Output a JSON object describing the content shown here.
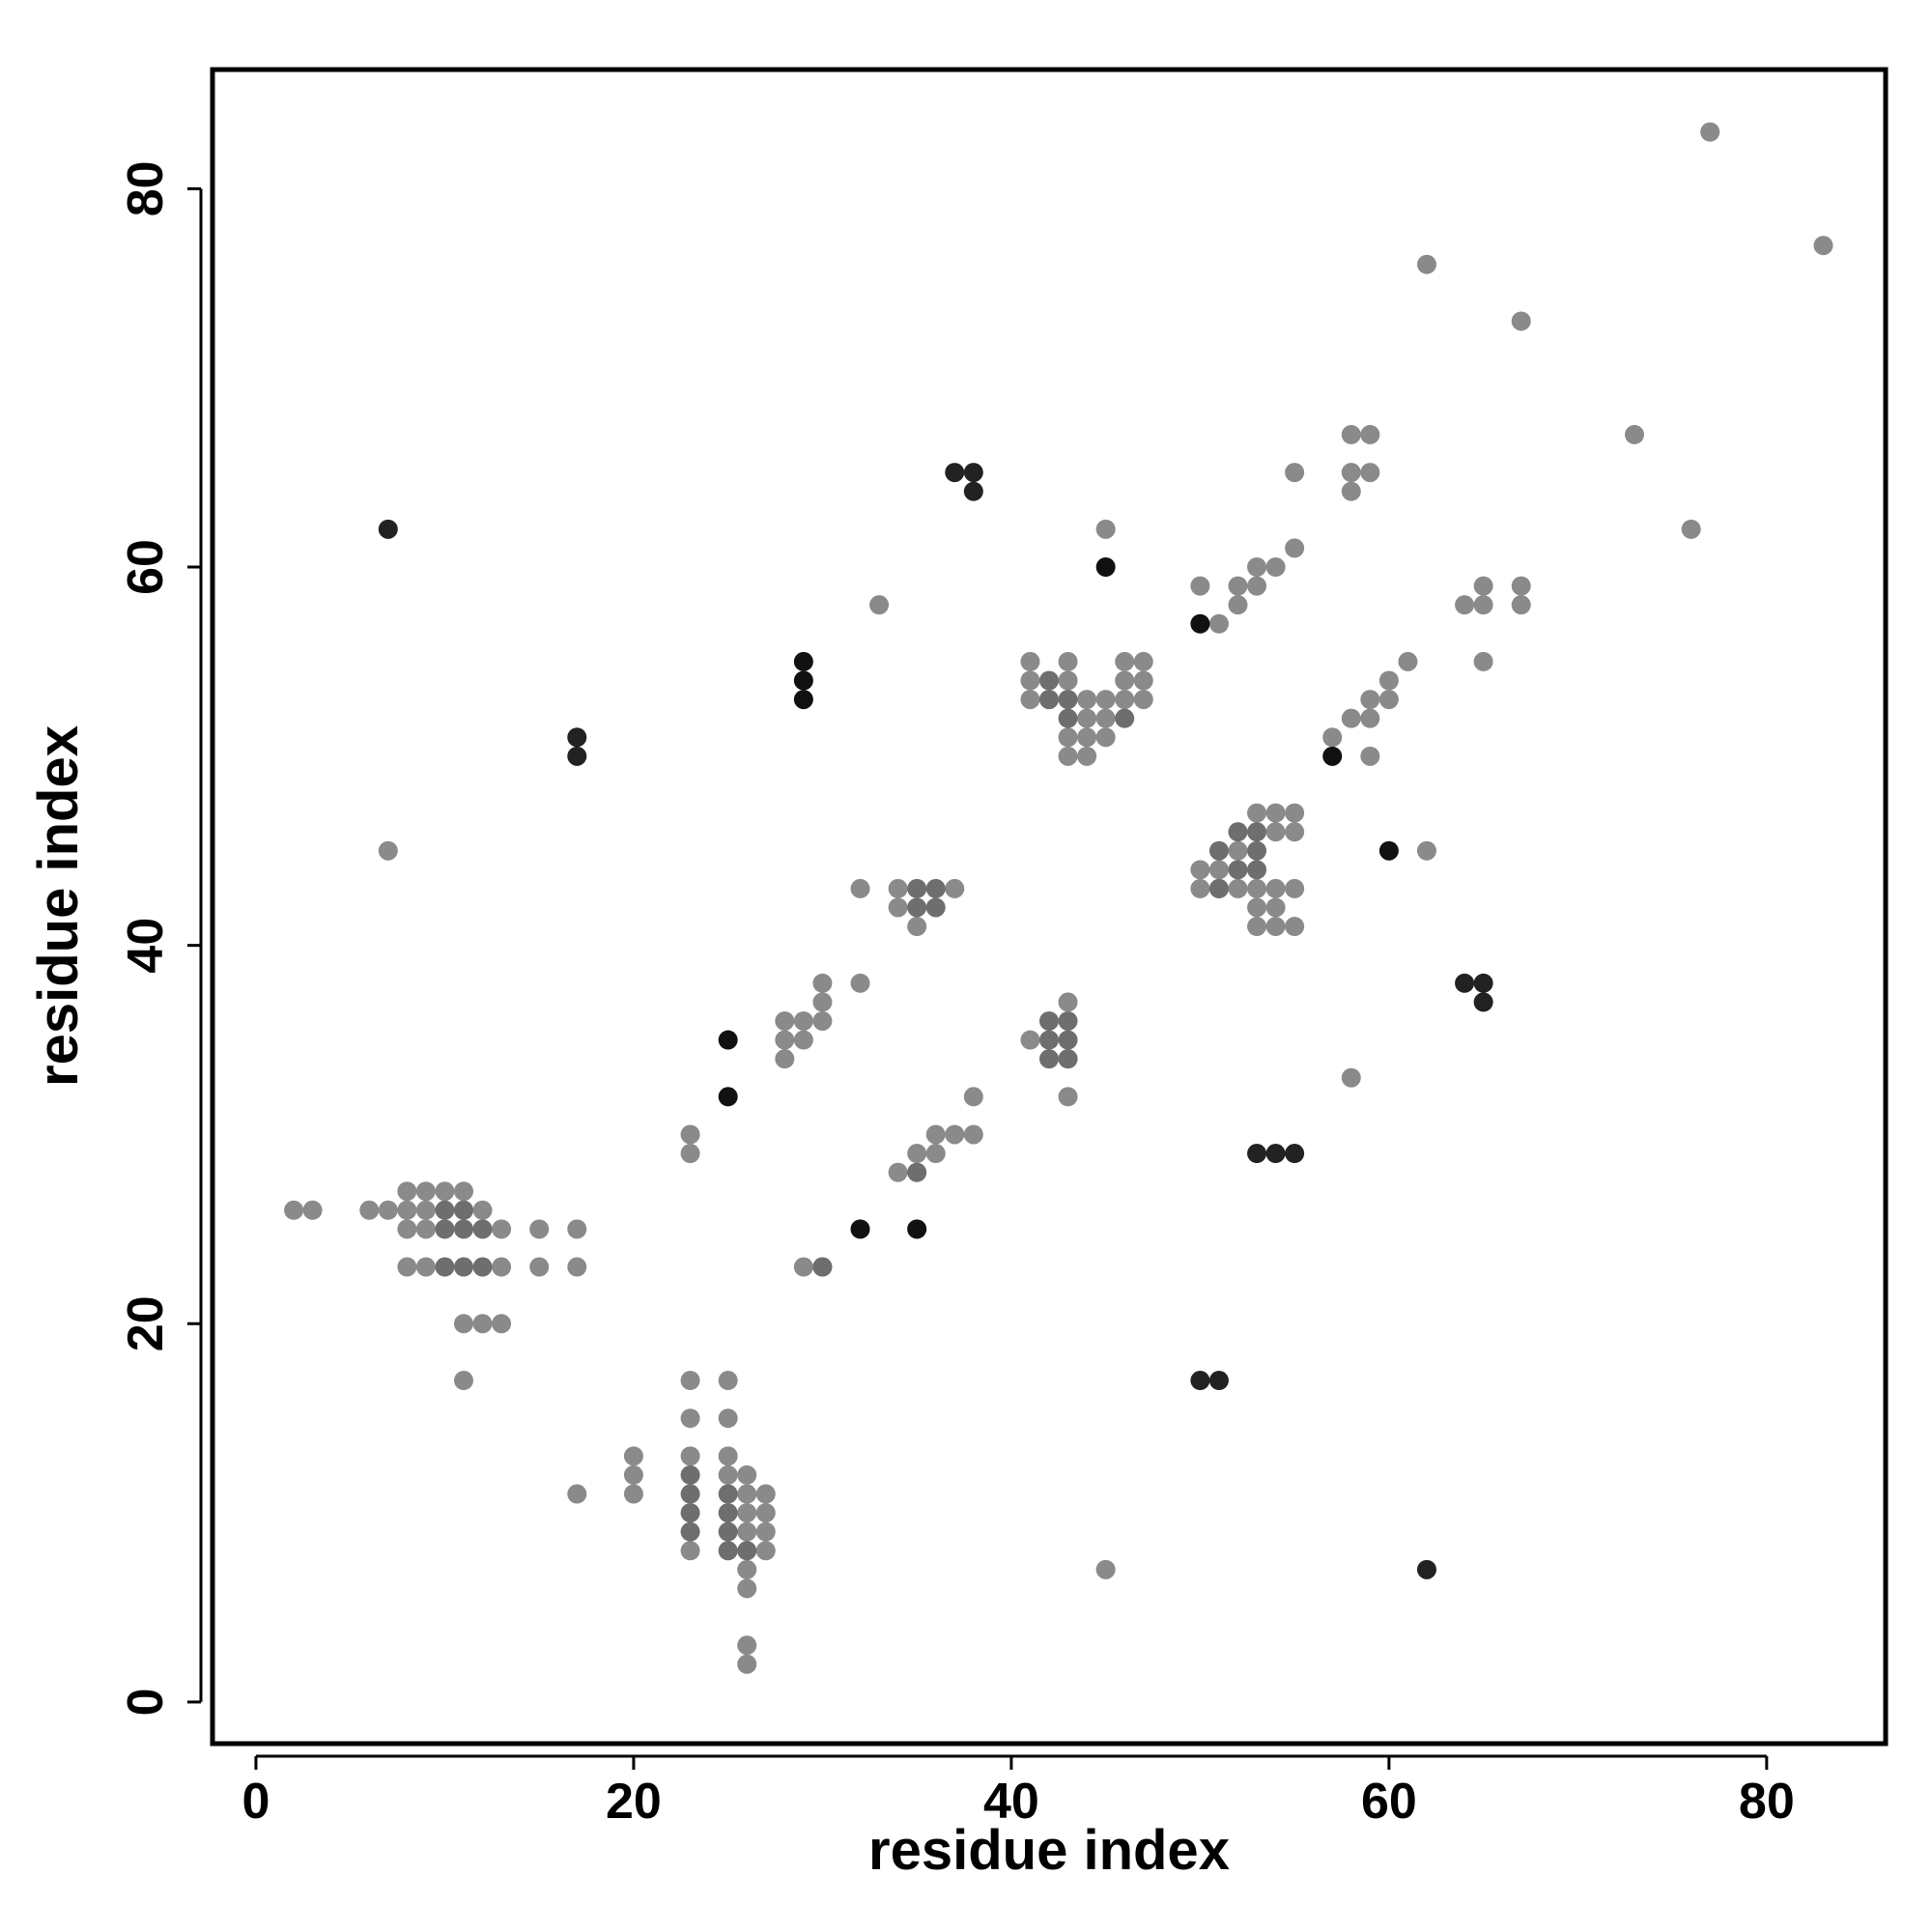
{
  "chart_data": {
    "type": "scatter",
    "title": "",
    "xlabel": "residue index",
    "ylabel": "residue index",
    "xlim": [
      -2.3,
      86.3
    ],
    "ylim": [
      -2.2,
      86.3
    ],
    "xticks": [
      0,
      20,
      40,
      60,
      80
    ],
    "yticks": [
      0,
      20,
      40,
      60,
      80
    ],
    "grid": false,
    "colors": {
      "light": "#8a8a8a",
      "medium": "#6e6e6e",
      "dark": "#222222",
      "black": "#111111"
    },
    "series": [
      {
        "shade": "light",
        "points": [
          [
            2,
            26
          ],
          [
            3,
            26
          ],
          [
            6,
            26
          ],
          [
            7,
            26
          ],
          [
            8,
            27
          ],
          [
            9,
            27
          ],
          [
            10,
            27
          ],
          [
            11,
            27
          ],
          [
            8,
            26
          ],
          [
            9,
            26
          ],
          [
            11,
            26
          ],
          [
            12,
            26
          ],
          [
            8,
            25
          ],
          [
            9,
            25
          ],
          [
            13,
            25
          ],
          [
            15,
            25
          ],
          [
            17,
            25
          ],
          [
            8,
            23
          ],
          [
            9,
            23
          ],
          [
            13,
            23
          ],
          [
            15,
            23
          ],
          [
            17,
            23
          ],
          [
            11,
            20
          ],
          [
            12,
            20
          ],
          [
            13,
            20
          ],
          [
            11,
            17
          ],
          [
            17,
            11
          ],
          [
            7,
            45
          ],
          [
            20,
            13
          ],
          [
            20,
            12
          ],
          [
            20,
            11
          ],
          [
            23,
            30
          ],
          [
            23,
            29
          ],
          [
            23,
            17
          ],
          [
            23,
            15
          ],
          [
            25,
            17
          ],
          [
            25,
            15
          ],
          [
            23,
            13
          ],
          [
            23,
            8
          ],
          [
            25,
            13
          ],
          [
            25,
            12
          ],
          [
            26,
            12
          ],
          [
            26,
            11
          ],
          [
            27,
            11
          ],
          [
            26,
            10
          ],
          [
            27,
            10
          ],
          [
            26,
            9
          ],
          [
            27,
            9
          ],
          [
            27,
            8
          ],
          [
            26,
            7
          ],
          [
            26,
            6
          ],
          [
            26,
            3
          ],
          [
            26,
            2
          ],
          [
            28,
            36
          ],
          [
            29,
            36
          ],
          [
            28,
            35
          ],
          [
            29,
            35
          ],
          [
            28,
            34
          ],
          [
            30,
            38
          ],
          [
            30,
            37
          ],
          [
            30,
            36
          ],
          [
            29,
            23
          ],
          [
            30,
            23
          ],
          [
            32,
            43
          ],
          [
            32,
            38
          ],
          [
            33,
            58
          ],
          [
            34,
            43
          ],
          [
            34,
            42
          ],
          [
            35,
            41
          ],
          [
            37,
            43
          ],
          [
            34,
            28
          ],
          [
            35,
            29
          ],
          [
            36,
            30
          ],
          [
            36,
            29
          ],
          [
            37,
            30
          ],
          [
            38,
            30
          ],
          [
            38,
            32
          ],
          [
            41,
            55
          ],
          [
            41,
            54
          ],
          [
            41,
            53
          ],
          [
            42,
            53
          ],
          [
            43,
            55
          ],
          [
            43,
            54
          ],
          [
            44,
            53
          ],
          [
            44,
            52
          ],
          [
            45,
            53
          ],
          [
            45,
            52
          ],
          [
            45,
            51
          ],
          [
            44,
            51
          ],
          [
            43,
            51
          ],
          [
            43,
            50
          ],
          [
            44,
            50
          ],
          [
            46,
            55
          ],
          [
            46,
            54
          ],
          [
            47,
            55
          ],
          [
            47,
            54
          ],
          [
            47,
            53
          ],
          [
            46,
            53
          ],
          [
            45,
            62
          ],
          [
            41,
            35
          ],
          [
            43,
            37
          ],
          [
            43,
            34
          ],
          [
            43,
            32
          ],
          [
            45,
            7
          ],
          [
            50,
            59
          ],
          [
            51,
            57
          ],
          [
            52,
            59
          ],
          [
            52,
            58
          ],
          [
            53,
            60
          ],
          [
            53,
            59
          ],
          [
            54,
            60
          ],
          [
            55,
            61
          ],
          [
            55,
            65
          ],
          [
            50,
            44
          ],
          [
            51,
            44
          ],
          [
            52,
            45
          ],
          [
            50,
            43
          ],
          [
            51,
            43
          ],
          [
            52,
            43
          ],
          [
            53,
            43
          ],
          [
            53,
            42
          ],
          [
            54,
            43
          ],
          [
            54,
            42
          ],
          [
            53,
            41
          ],
          [
            54,
            41
          ],
          [
            55,
            43
          ],
          [
            55,
            41
          ],
          [
            53,
            47
          ],
          [
            54,
            47
          ],
          [
            55,
            47
          ],
          [
            54,
            46
          ],
          [
            55,
            46
          ],
          [
            57,
            51
          ],
          [
            58,
            52
          ],
          [
            59,
            53
          ],
          [
            59,
            52
          ],
          [
            59,
            50
          ],
          [
            60,
            54
          ],
          [
            60,
            53
          ],
          [
            61,
            55
          ],
          [
            58,
            67
          ],
          [
            59,
            67
          ],
          [
            58,
            65
          ],
          [
            59,
            65
          ],
          [
            58,
            64
          ],
          [
            58,
            33
          ],
          [
            62,
            76
          ],
          [
            62,
            45
          ],
          [
            64,
            58
          ],
          [
            65,
            59
          ],
          [
            65,
            58
          ],
          [
            65,
            55
          ],
          [
            67,
            73
          ],
          [
            67,
            59
          ],
          [
            67,
            58
          ],
          [
            73,
            67
          ],
          [
            76,
            62
          ],
          [
            77,
            83
          ],
          [
            83,
            77
          ]
        ]
      },
      {
        "shade": "medium",
        "points": [
          [
            10,
            26
          ],
          [
            10,
            25
          ],
          [
            11,
            25
          ],
          [
            11,
            26
          ],
          [
            12,
            25
          ],
          [
            10,
            23
          ],
          [
            11,
            23
          ],
          [
            12,
            23
          ],
          [
            23,
            12
          ],
          [
            23,
            11
          ],
          [
            23,
            10
          ],
          [
            23,
            9
          ],
          [
            25,
            11
          ],
          [
            25,
            10
          ],
          [
            25,
            9
          ],
          [
            25,
            8
          ],
          [
            26,
            8
          ],
          [
            30,
            23
          ],
          [
            35,
            43
          ],
          [
            36,
            43
          ],
          [
            35,
            42
          ],
          [
            36,
            42
          ],
          [
            35,
            28
          ],
          [
            42,
            36
          ],
          [
            43,
            36
          ],
          [
            42,
            35
          ],
          [
            43,
            35
          ],
          [
            42,
            34
          ],
          [
            43,
            34
          ],
          [
            42,
            54
          ],
          [
            42,
            53
          ],
          [
            43,
            53
          ],
          [
            43,
            52
          ],
          [
            46,
            52
          ],
          [
            52,
            46
          ],
          [
            53,
            46
          ],
          [
            51,
            45
          ],
          [
            53,
            45
          ],
          [
            52,
            44
          ],
          [
            53,
            44
          ],
          [
            51,
            43
          ]
        ]
      },
      {
        "shade": "dark",
        "points": [
          [
            7,
            62
          ],
          [
            17,
            51
          ],
          [
            17,
            50
          ],
          [
            37,
            65
          ],
          [
            38,
            65
          ],
          [
            38,
            64
          ],
          [
            64,
            38
          ],
          [
            65,
            38
          ],
          [
            65,
            37
          ],
          [
            53,
            29
          ],
          [
            54,
            29
          ],
          [
            55,
            29
          ],
          [
            50,
            17
          ],
          [
            51,
            17
          ],
          [
            62,
            7
          ]
        ]
      },
      {
        "shade": "black",
        "points": [
          [
            25,
            35
          ],
          [
            25,
            32
          ],
          [
            29,
            55
          ],
          [
            29,
            54
          ],
          [
            29,
            53
          ],
          [
            32,
            25
          ],
          [
            35,
            25
          ],
          [
            45,
            60
          ],
          [
            50,
            57
          ],
          [
            57,
            50
          ],
          [
            60,
            45
          ]
        ]
      }
    ]
  }
}
